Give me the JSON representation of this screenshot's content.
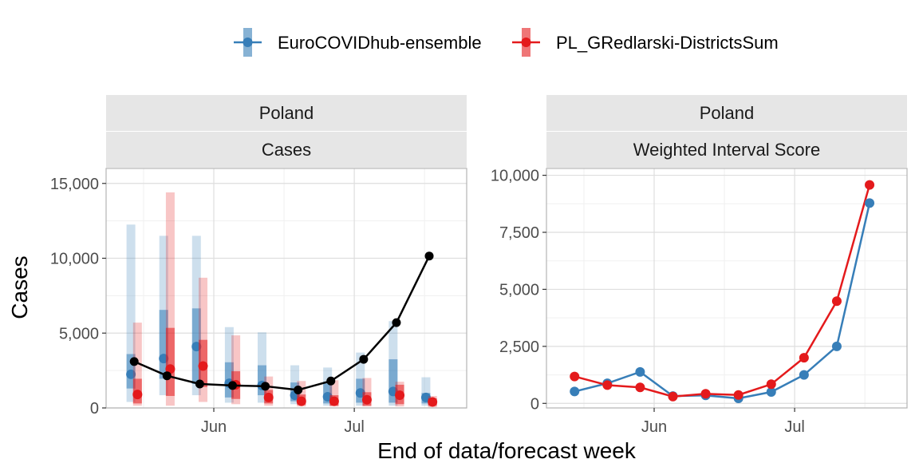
{
  "legend": [
    {
      "name": "EuroCOVIDhub-ensemble",
      "color": "#377eb8"
    },
    {
      "name": "PL_GRedlarski-DistrictsSum",
      "color": "#e41a1c"
    }
  ],
  "xlabel": "End of data/forecast week",
  "ylabel": "Cases",
  "chart_data": [
    {
      "type": "line",
      "facet": "Poland",
      "subfacet": "Cases",
      "ylim": [
        0,
        16000
      ],
      "yticks": [
        0,
        5000,
        10000,
        15000
      ],
      "yticklabels": [
        "0",
        "5,000",
        "10,000",
        "15,000"
      ],
      "xlim": [
        "2021-05-09",
        "2021-07-25"
      ],
      "xticks": [
        "2021-06-01",
        "2021-07-01"
      ],
      "xticklabels": [
        "Jun",
        "Jul"
      ],
      "grid": true,
      "observed": {
        "dates": [
          "2021-05-15",
          "2021-05-22",
          "2021-05-29",
          "2021-06-05",
          "2021-06-12",
          "2021-06-19",
          "2021-06-26",
          "2021-07-03",
          "2021-07-10",
          "2021-07-17"
        ],
        "values": [
          3100,
          2150,
          1600,
          1500,
          1450,
          1200,
          1800,
          3250,
          5700,
          10150
        ]
      },
      "series": [
        {
          "name": "EuroCOVIDhub-ensemble",
          "dates": [
            "2021-05-15",
            "2021-05-22",
            "2021-05-29",
            "2021-06-05",
            "2021-06-12",
            "2021-06-19",
            "2021-06-26",
            "2021-07-03",
            "2021-07-10",
            "2021-07-17"
          ],
          "median": [
            2250,
            3300,
            4100,
            1650,
            1500,
            850,
            750,
            1000,
            1100,
            700
          ],
          "inner": [
            [
              1300,
              3600
            ],
            [
              1950,
              6550
            ],
            [
              1600,
              6650
            ],
            [
              700,
              3050
            ],
            [
              850,
              2850
            ],
            [
              450,
              1700
            ],
            [
              300,
              1750
            ],
            [
              350,
              1950
            ],
            [
              350,
              3250
            ],
            [
              300,
              1000
            ]
          ],
          "outer": [
            [
              400,
              12250
            ],
            [
              850,
              11500
            ],
            [
              850,
              11500
            ],
            [
              350,
              5400
            ],
            [
              350,
              5050
            ],
            [
              250,
              2850
            ],
            [
              150,
              2700
            ],
            [
              150,
              3700
            ],
            [
              150,
              5800
            ],
            [
              150,
              2050
            ]
          ]
        },
        {
          "name": "PL_GRedlarski-DistrictsSum",
          "dates": [
            "2021-05-15",
            "2021-05-22",
            "2021-05-29",
            "2021-06-05",
            "2021-06-12",
            "2021-06-19",
            "2021-06-26",
            "2021-07-03",
            "2021-07-10",
            "2021-07-17"
          ],
          "median": [
            900,
            2600,
            2800,
            1550,
            700,
            450,
            450,
            550,
            850,
            400
          ],
          "inner": [
            [
              300,
              1950
            ],
            [
              800,
              5350
            ],
            [
              1400,
              4550
            ],
            [
              600,
              2450
            ],
            [
              300,
              1200
            ],
            [
              200,
              900
            ],
            [
              150,
              850
            ],
            [
              150,
              1050
            ],
            [
              250,
              1550
            ],
            [
              150,
              650
            ]
          ],
          "outer": [
            [
              150,
              5700
            ],
            [
              150,
              14400
            ],
            [
              400,
              8700
            ],
            [
              250,
              4850
            ],
            [
              150,
              2100
            ],
            [
              100,
              1800
            ],
            [
              100,
              1850
            ],
            [
              100,
              2000
            ],
            [
              100,
              1750
            ],
            [
              50,
              800
            ]
          ]
        }
      ]
    },
    {
      "type": "line",
      "facet": "Poland",
      "subfacet": "Weighted Interval Score",
      "ylim": [
        -200,
        10300
      ],
      "yticks": [
        0,
        2500,
        5000,
        7500,
        10000
      ],
      "yticklabels": [
        "0",
        "2,500",
        "5,000",
        "7,500",
        "10,000"
      ],
      "xlim": [
        "2021-05-09",
        "2021-07-25"
      ],
      "xticks": [
        "2021-06-01",
        "2021-07-01"
      ],
      "xticklabels": [
        "Jun",
        "Jul"
      ],
      "grid": true,
      "series": [
        {
          "name": "EuroCOVIDhub-ensemble",
          "dates": [
            "2021-05-15",
            "2021-05-22",
            "2021-05-29",
            "2021-06-05",
            "2021-06-12",
            "2021-06-19",
            "2021-06-26",
            "2021-07-03",
            "2021-07-10",
            "2021-07-17"
          ],
          "values": [
            520,
            880,
            1380,
            320,
            350,
            220,
            500,
            1250,
            2500,
            8780
          ]
        },
        {
          "name": "PL_GRedlarski-DistrictsSum",
          "dates": [
            "2021-05-15",
            "2021-05-22",
            "2021-05-29",
            "2021-06-05",
            "2021-06-12",
            "2021-06-19",
            "2021-06-26",
            "2021-07-03",
            "2021-07-10",
            "2021-07-17"
          ],
          "values": [
            1180,
            800,
            700,
            300,
            420,
            370,
            840,
            2000,
            4480,
            9580
          ]
        }
      ]
    }
  ]
}
